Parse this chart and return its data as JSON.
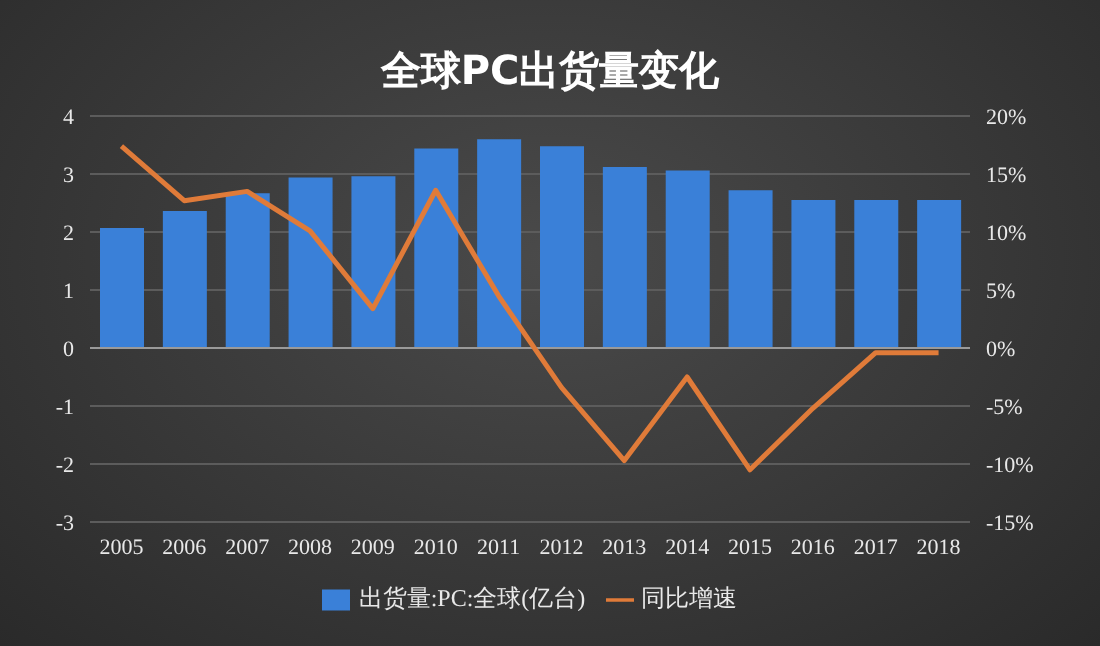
{
  "chart_data": {
    "type": "bar",
    "title": "全球PC出货量变化",
    "categories": [
      "2005",
      "2006",
      "2007",
      "2008",
      "2009",
      "2010",
      "2011",
      "2012",
      "2013",
      "2014",
      "2015",
      "2016",
      "2017",
      "2018"
    ],
    "series": [
      {
        "name": "出货量:PC:全球(亿台)",
        "color": "#3a80d8",
        "values": [
          2.07,
          2.36,
          2.67,
          2.94,
          2.96,
          3.44,
          3.6,
          3.48,
          3.12,
          3.06,
          2.72,
          2.55,
          2.55,
          2.55
        ]
      },
      {
        "name": "同比增速",
        "type": "line",
        "axis": "y2",
        "color": "#e07b39",
        "values": [
          17.4,
          12.7,
          13.5,
          10.1,
          3.4,
          13.6,
          4.5,
          -3.4,
          -9.7,
          -2.5,
          -10.5,
          -5.2,
          -0.4,
          -0.4
        ]
      }
    ],
    "ylim": [
      -3,
      4
    ],
    "yticks": [
      -3,
      -2,
      -1,
      0,
      1,
      2,
      3,
      4
    ],
    "y2lim": [
      -15,
      20
    ],
    "y2ticks": [
      {
        "value": -15,
        "label": "-15%"
      },
      {
        "value": -10,
        "label": "-10%"
      },
      {
        "value": -5,
        "label": "-5%"
      },
      {
        "value": 0,
        "label": "0%"
      },
      {
        "value": 5,
        "label": "5%"
      },
      {
        "value": 10,
        "label": "10%"
      },
      {
        "value": 15,
        "label": "15%"
      },
      {
        "value": 20,
        "label": "20%"
      }
    ],
    "grid": "y",
    "legend": "bottom",
    "marker": "none",
    "line_style": "solid"
  }
}
